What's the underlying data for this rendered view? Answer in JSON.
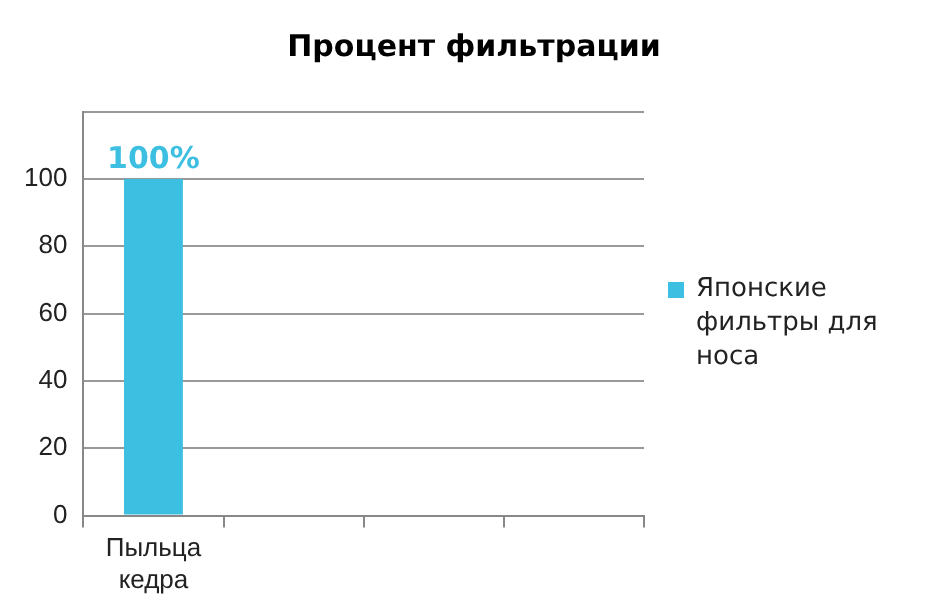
{
  "chart_data": {
    "type": "bar",
    "title": "Процент фильтрации",
    "categories": [
      "Пыльца кедра",
      null,
      null,
      null
    ],
    "series": [
      {
        "name": "Японские фильтры для носа",
        "color": "#3cbfe0",
        "values": [
          100,
          null,
          null,
          null
        ],
        "value_labels": [
          "100%",
          null,
          null,
          null
        ]
      }
    ],
    "ylim": [
      0,
      120
    ],
    "yticks": [
      0,
      20,
      40,
      60,
      80,
      100,
      {
        "value": 120,
        "label": null
      }
    ],
    "grid": "y",
    "legend": "right"
  }
}
